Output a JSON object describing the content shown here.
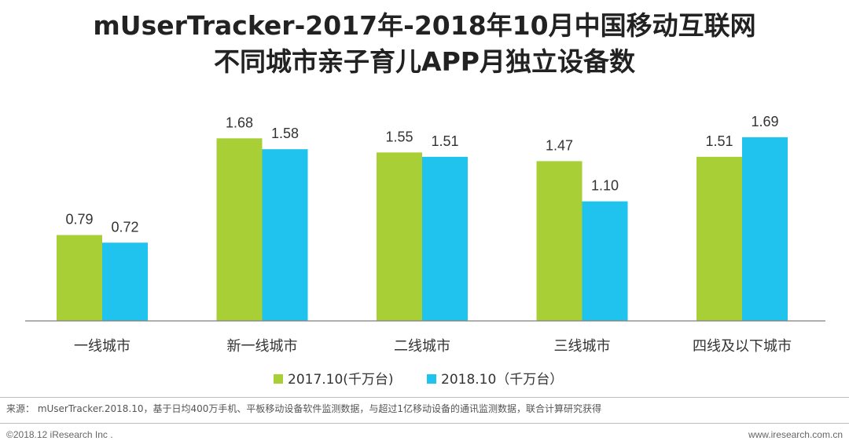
{
  "header": {
    "title_line1": "mUserTracker-2017年-2018年10月中国移动互联网",
    "title_line2": "不同城市亲子育儿APP月独立设备数"
  },
  "chart_data": {
    "type": "bar",
    "title": "mUserTracker-2017年-2018年10月中国移动互联网不同城市亲子育儿APP月独立设备数",
    "categories": [
      "一线城市",
      "新一线城市",
      "二线城市",
      "三线城市",
      "四线及以下城市"
    ],
    "series": [
      {
        "name": "2017.10(千万台)",
        "color": "#a8cf36",
        "values": [
          0.79,
          1.68,
          1.55,
          1.47,
          1.51
        ]
      },
      {
        "name": "2018.10（千万台）",
        "color": "#1fc3ee",
        "values": [
          0.72,
          1.58,
          1.51,
          1.1,
          1.69
        ]
      }
    ],
    "ylim": [
      0,
      1.87
    ],
    "xlabel": "",
    "ylabel": "",
    "legend": "bottom-center",
    "grid": false,
    "value_format": "2dp"
  },
  "footer": {
    "source": "来源： mUserTracker.2018.10，基于日均400万手机、平板移动设备软件监测数据，与超过1亿移动设备的通讯监测数据，联合计算研究获得",
    "copyright": "©2018.12 iResearch Inc .",
    "website": "www.iresearch.com.cn"
  }
}
